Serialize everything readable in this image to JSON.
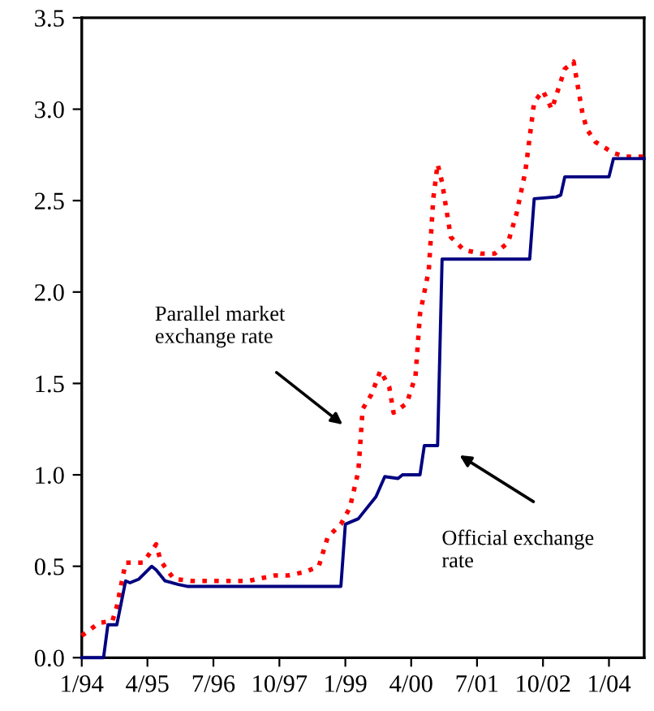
{
  "chart_data": {
    "type": "line",
    "xlim": [
      "1994-01",
      "2004-09"
    ],
    "xticks": [
      {
        "value": "1994-01",
        "label": "1/94"
      },
      {
        "value": "1995-04",
        "label": "4/95"
      },
      {
        "value": "1996-07",
        "label": "7/96"
      },
      {
        "value": "1997-10",
        "label": "10/97"
      },
      {
        "value": "1999-01",
        "label": "1/99"
      },
      {
        "value": "2000-04",
        "label": "4/00"
      },
      {
        "value": "2001-07",
        "label": "7/01"
      },
      {
        "value": "2002-10",
        "label": "10/02"
      },
      {
        "value": "2004-01",
        "label": "1/04"
      }
    ],
    "ylim": [
      0,
      3.5
    ],
    "yticks": [
      {
        "value": 0,
        "label": "0.0"
      },
      {
        "value": 0.5,
        "label": "0.5"
      },
      {
        "value": 1,
        "label": "1.0"
      },
      {
        "value": 1.5,
        "label": "1.5"
      },
      {
        "value": 2,
        "label": "2.0"
      },
      {
        "value": 2.5,
        "label": "2.5"
      },
      {
        "value": 3,
        "label": "3.0"
      },
      {
        "value": 3.5,
        "label": "3.5"
      }
    ],
    "grid": false,
    "legend": false,
    "marker": "none",
    "series": [
      {
        "color": "#ff0000",
        "line_style": "dotted",
        "x": [
          "1994-01",
          "1994-05",
          "1994-08",
          "1994-09",
          "1994-11",
          "1995-01",
          "1995-03",
          "1995-06",
          "1995-07",
          "1995-10",
          "1996-02",
          "1997-03",
          "1997-09",
          "1997-12",
          "1998-04",
          "1998-07",
          "1998-09",
          "1998-12",
          "1999-02",
          "1999-04",
          "1999-05",
          "1999-07",
          "1999-09",
          "1999-11",
          "1999-12",
          "2000-03",
          "2000-05",
          "2000-06",
          "2000-08",
          "2000-09",
          "2000-10",
          "2000-11",
          "2000-12",
          "2001-01",
          "2001-04",
          "2001-08",
          "2001-11",
          "2002-02",
          "2002-04",
          "2002-06",
          "2002-08",
          "2002-10",
          "2002-12",
          "2003-03",
          "2003-05",
          "2003-07",
          "2003-08",
          "2003-10",
          "2004-02",
          "2004-05",
          "2004-09"
        ],
        "values": [
          0.12,
          0.19,
          0.2,
          0.28,
          0.52,
          0.52,
          0.52,
          0.62,
          0.53,
          0.43,
          0.42,
          0.42,
          0.45,
          0.45,
          0.47,
          0.5,
          0.66,
          0.73,
          0.82,
          1.02,
          1.36,
          1.44,
          1.57,
          1.48,
          1.34,
          1.39,
          1.54,
          1.88,
          2.12,
          2.51,
          2.7,
          2.6,
          2.45,
          2.3,
          2.23,
          2.21,
          2.21,
          2.27,
          2.43,
          2.66,
          3.04,
          3.1,
          3.0,
          3.22,
          3.26,
          2.98,
          2.89,
          2.82,
          2.76,
          2.74,
          2.74
        ]
      },
      {
        "color": "#000080",
        "line_style": "solid",
        "x": [
          "1994-01",
          "1994-06",
          "1994-07",
          "1994-09",
          "1994-11",
          "1994-12",
          "1995-02",
          "1995-05",
          "1995-06",
          "1995-08",
          "1995-11",
          "1996-01",
          "1998-12",
          "1999-01",
          "1999-04",
          "1999-05",
          "1999-08",
          "1999-10",
          "2000-01",
          "2000-02",
          "2000-06",
          "2000-07",
          "2000-10",
          "2000-11",
          "2002-07",
          "2002-08",
          "2003-01",
          "2003-02",
          "2003-03",
          "2004-01",
          "2004-02",
          "2004-09"
        ],
        "values": [
          0,
          0,
          0.18,
          0.18,
          0.42,
          0.41,
          0.43,
          0.5,
          0.48,
          0.42,
          0.4,
          0.39,
          0.39,
          0.73,
          0.76,
          0.79,
          0.88,
          0.99,
          0.98,
          1.0,
          1.0,
          1.16,
          1.16,
          2.18,
          2.18,
          2.51,
          2.52,
          2.53,
          2.63,
          2.63,
          2.73,
          2.73
        ]
      }
    ],
    "annotations": [
      "Parallel market\nexchange rate",
      "Official exchange\nrate"
    ]
  }
}
